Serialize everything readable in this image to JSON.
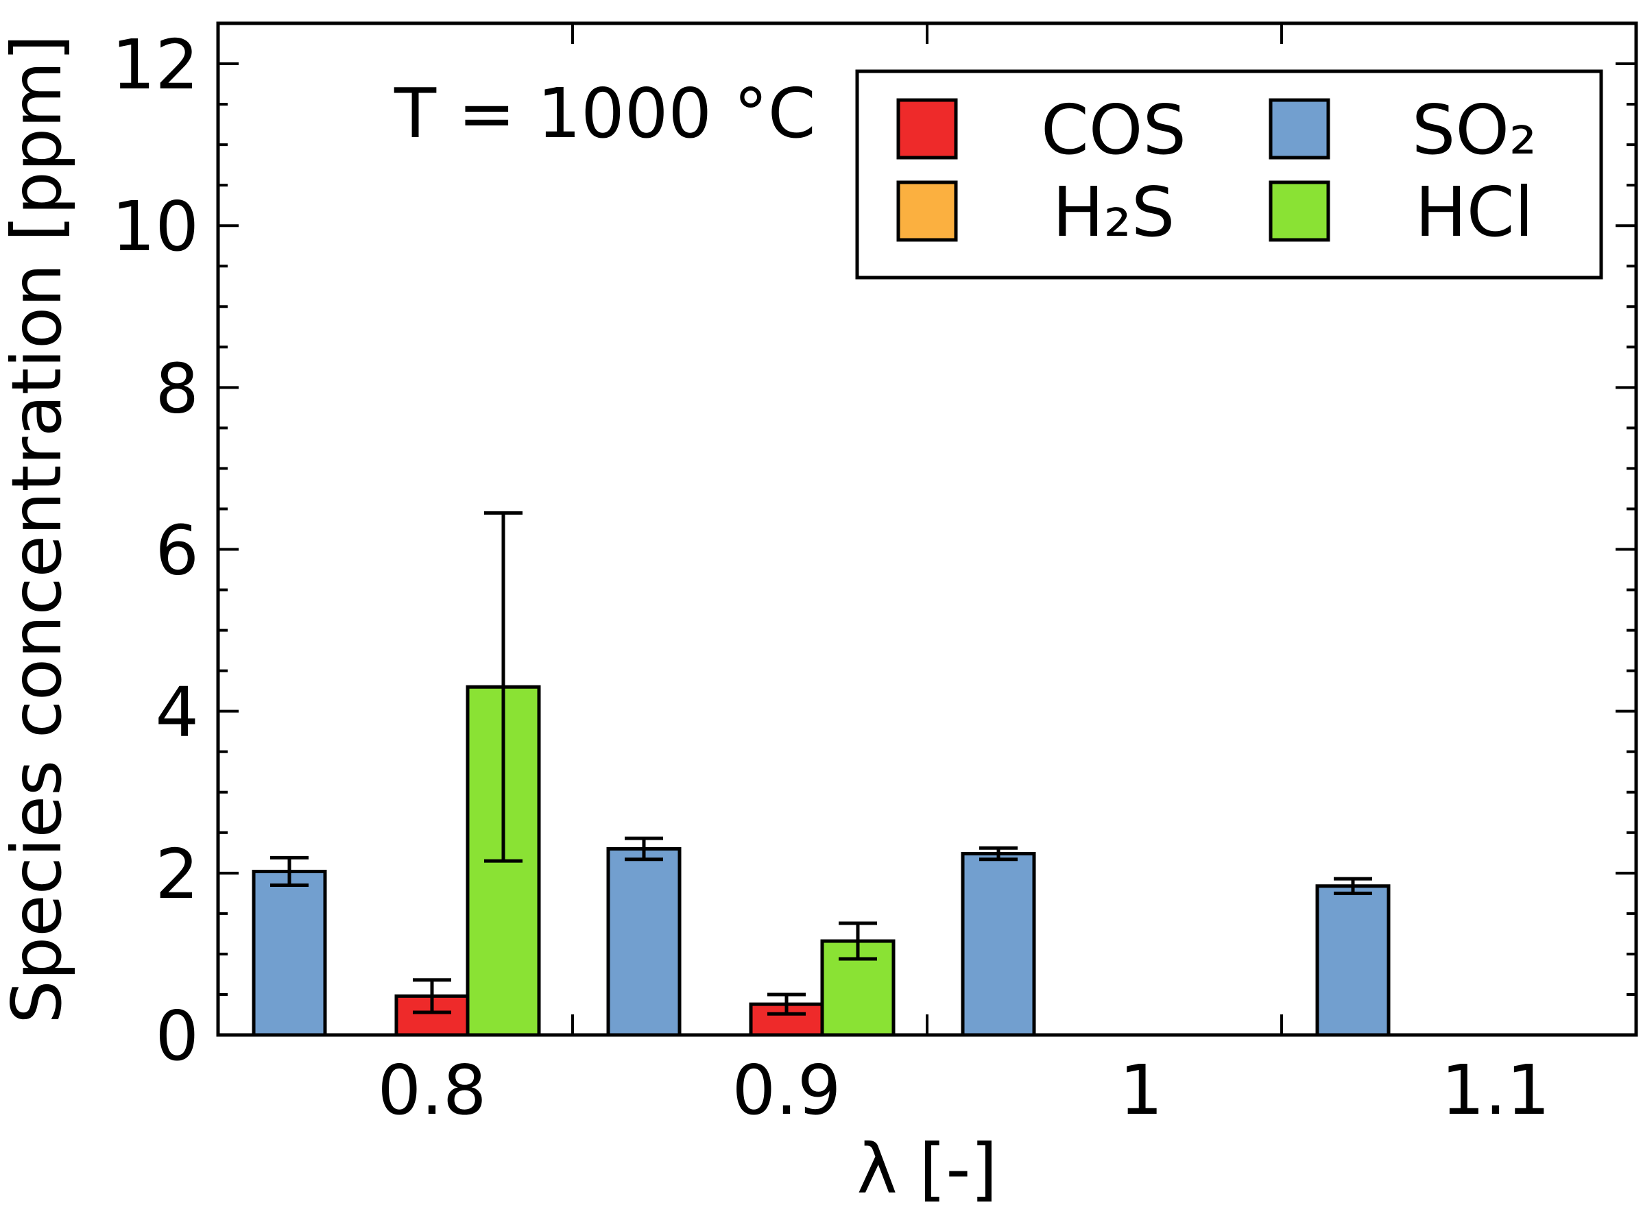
{
  "chart_data": {
    "type": "bar",
    "title": "",
    "annotation": "T = 1000 °C",
    "xlabel": "λ [-]",
    "ylabel": "Species concentration [ppm]",
    "ylim": [
      0,
      12.5
    ],
    "yticks": [
      0,
      2,
      4,
      6,
      8,
      10,
      12
    ],
    "y_minor_step": 0.5,
    "categories": [
      "0.8",
      "0.9",
      "1",
      "1.1"
    ],
    "legend_position": "top-right",
    "series": [
      {
        "key": "cos",
        "name": "COS",
        "color": "#ee2a2a",
        "values": [
          0.48,
          0.38,
          null,
          null
        ],
        "errors": [
          0.2,
          0.12,
          null,
          null
        ]
      },
      {
        "key": "h2s",
        "name": "H₂S",
        "color": "#fbb040",
        "values": [
          null,
          null,
          null,
          null
        ],
        "errors": [
          null,
          null,
          null,
          null
        ]
      },
      {
        "key": "so2",
        "name": "SO₂",
        "color": "#729fcf",
        "values": [
          2.02,
          2.3,
          2.24,
          1.84
        ],
        "errors": [
          0.17,
          0.13,
          0.07,
          0.09
        ]
      },
      {
        "key": "hcl",
        "name": "HCl",
        "color": "#8ae234",
        "values": [
          4.3,
          1.16,
          null,
          null
        ],
        "errors": [
          2.15,
          0.22,
          null,
          null
        ]
      }
    ]
  }
}
